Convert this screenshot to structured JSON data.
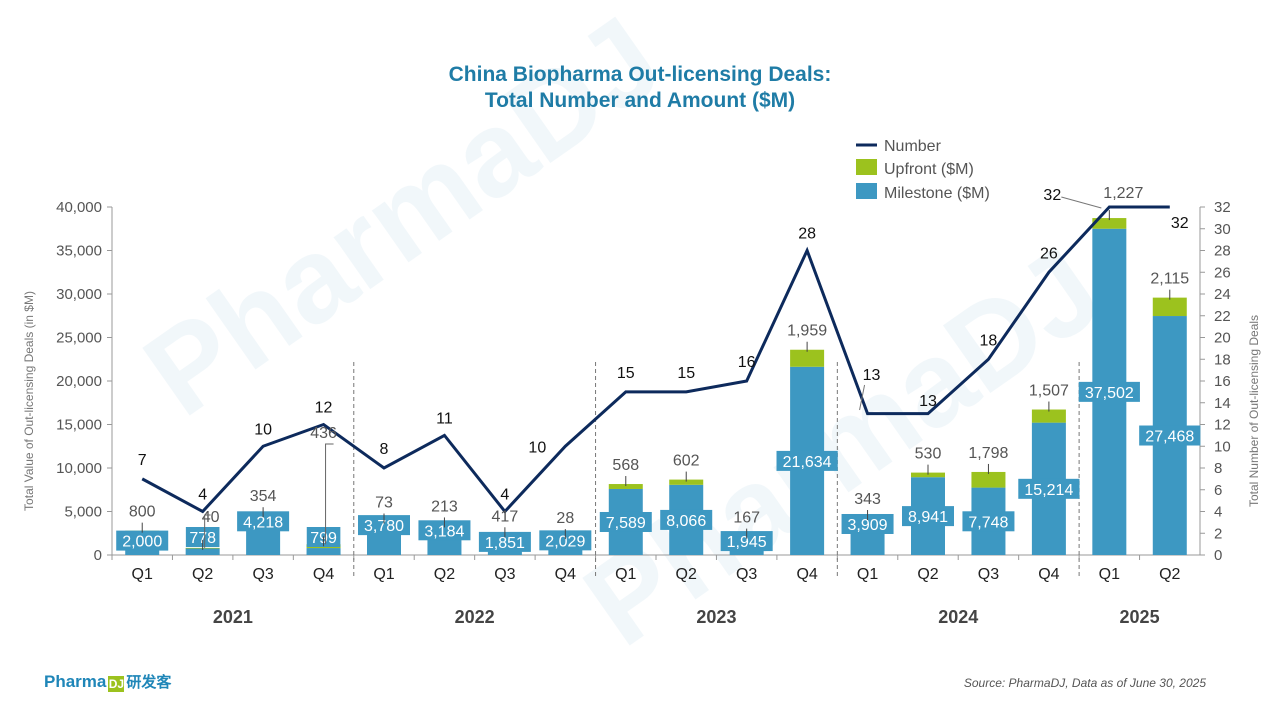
{
  "title": {
    "line1": "China Biopharma Out-licensing Deals:",
    "line2": "Total Number and Amount ($M)"
  },
  "brand": {
    "name": "Pharma",
    "mark": "DJ",
    "cn": "研发客"
  },
  "source": "Source: PharmaDJ, Data as of June 30, 2025",
  "colors": {
    "milestone": "#3d98c2",
    "upfront": "#9cc21e",
    "number": "#0d2a5c",
    "title": "#1f7ca6"
  },
  "chart_data": {
    "type": "bar",
    "stacked": true,
    "title": "China Biopharma Out-licensing Deals: Total Number and Amount ($M)",
    "quarters": [
      "Q1",
      "Q2",
      "Q3",
      "Q4",
      "Q1",
      "Q2",
      "Q3",
      "Q4",
      "Q1",
      "Q2",
      "Q3",
      "Q4",
      "Q1",
      "Q2",
      "Q3",
      "Q4",
      "Q1",
      "Q2"
    ],
    "years": [
      {
        "label": "2021",
        "count": 4
      },
      {
        "label": "2022",
        "count": 4
      },
      {
        "label": "2023",
        "count": 4
      },
      {
        "label": "2024",
        "count": 4
      },
      {
        "label": "2025",
        "count": 2
      }
    ],
    "series": [
      {
        "name": "Milestone ($M)",
        "axis": "left",
        "values": [
          2000,
          778,
          4218,
          799,
          3780,
          3184,
          1851,
          2029,
          7589,
          8066,
          1945,
          21634,
          3909,
          8941,
          7748,
          15214,
          37502,
          27468
        ]
      },
      {
        "name": "Upfront ($M)",
        "axis": "left",
        "values": [
          800,
          40,
          354,
          436,
          73,
          213,
          417,
          28,
          568,
          602,
          167,
          1959,
          343,
          530,
          1798,
          1507,
          1227,
          2115
        ]
      },
      {
        "name": "Number",
        "axis": "right",
        "type": "line",
        "values": [
          7,
          4,
          10,
          12,
          8,
          11,
          4,
          10,
          15,
          15,
          16,
          28,
          13,
          13,
          18,
          26,
          32,
          32
        ]
      }
    ],
    "y_left": {
      "label": "Total Value of Out-licensing Deals (in $M)",
      "min": 0,
      "max": 40000,
      "step": 5000
    },
    "y_right": {
      "label": "Total Number of Out-licensing Deals",
      "min": 0,
      "max": 32,
      "step": 2
    },
    "legend": [
      "Number",
      "Upfront ($M)",
      "Milestone ($M)"
    ],
    "legend_position": "top-right"
  }
}
